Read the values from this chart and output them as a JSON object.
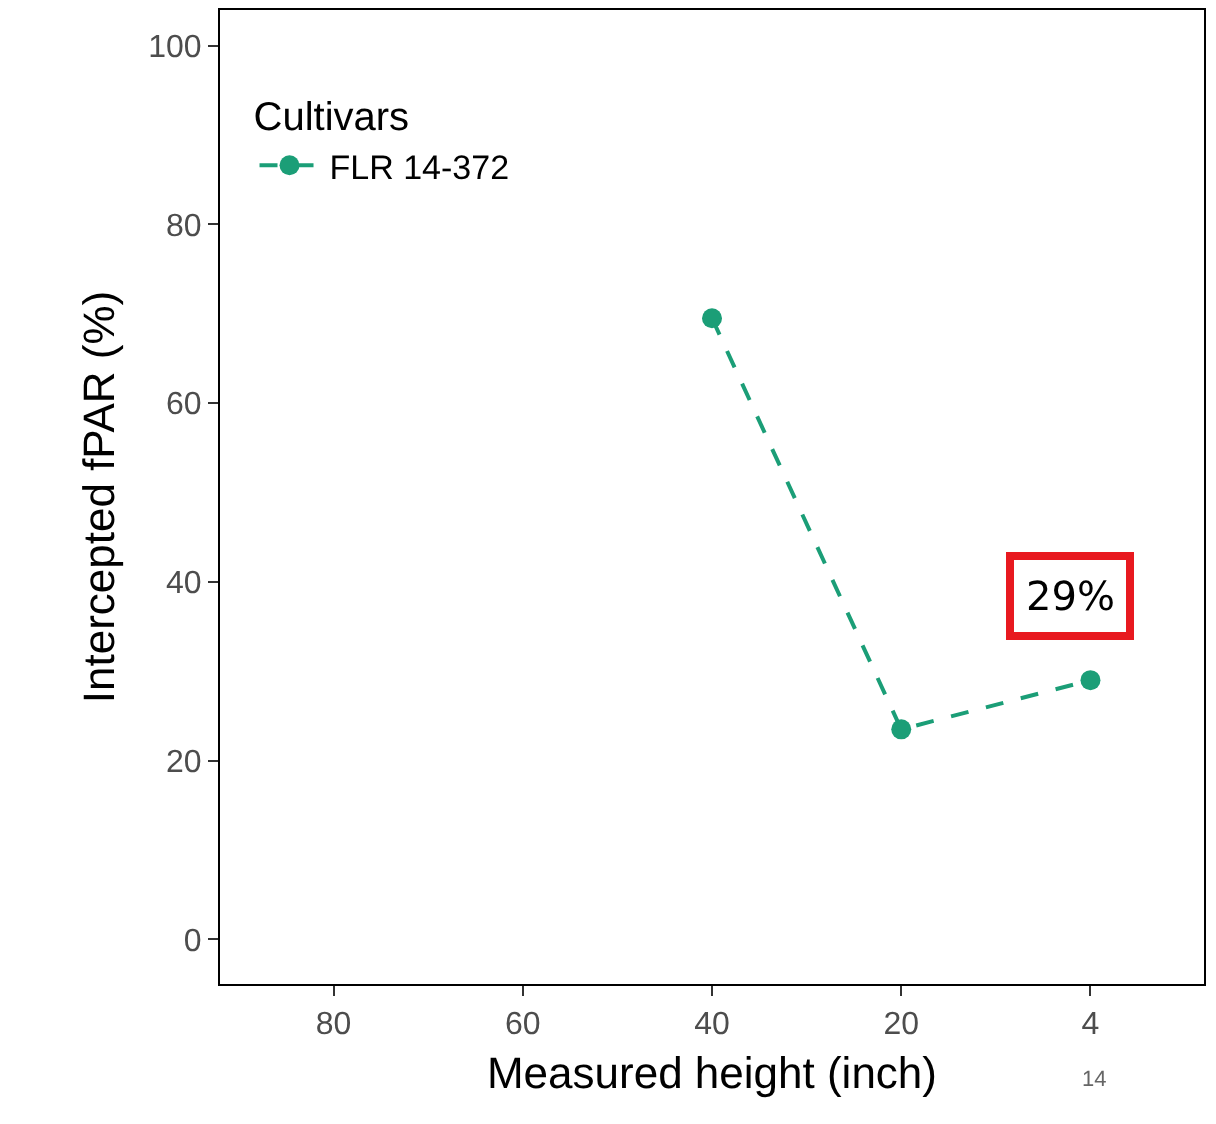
{
  "chart_data": {
    "type": "line",
    "xlabel": "Measured height (inch)",
    "ylabel": "Intercepted fPAR (%)",
    "legend_title": "Cultivars",
    "categories": [
      "80",
      "60",
      "40",
      "20",
      "4"
    ],
    "series": [
      {
        "name": "FLR 14-372",
        "color": "#1b9e77",
        "values": [
          null,
          null,
          69.5,
          23.5,
          29
        ]
      }
    ],
    "ylim": [
      -5,
      104
    ],
    "yticks": [
      0,
      20,
      40,
      60,
      80,
      100
    ],
    "grid": false,
    "legend": "top left",
    "marker": "circle",
    "line_style": "dashed",
    "annotations": [
      {
        "text": "29%",
        "x": "4",
        "y": 29
      },
      "14"
    ]
  }
}
